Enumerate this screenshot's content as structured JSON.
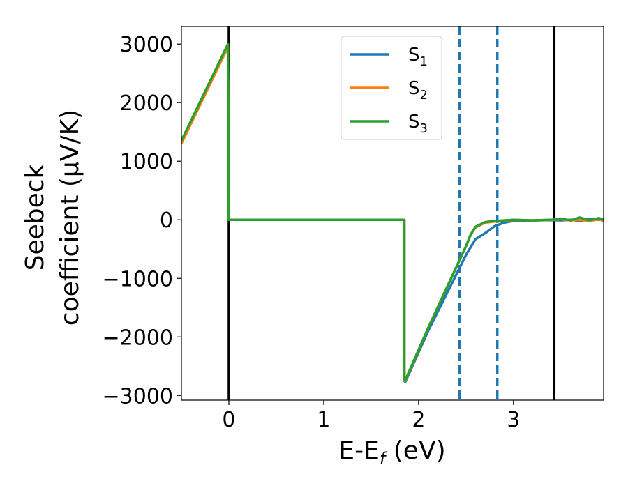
{
  "chart_data": {
    "type": "line",
    "xlabel_main": "E-E",
    "xlabel_sub": "f",
    "xlabel_unit": " (eV)",
    "ylabel_line1": "Seebeck",
    "ylabel_line2": "coefficient  (μV/K)",
    "xlim": [
      -0.5,
      3.95
    ],
    "ylim": [
      -3080,
      3300
    ],
    "x_ticks": [
      0,
      1,
      2,
      3
    ],
    "x_tick_labels": [
      "0",
      "1",
      "2",
      "3"
    ],
    "y_ticks": [
      3000,
      2000,
      1000,
      0,
      -1000,
      -2000,
      -3000
    ],
    "y_tick_labels": [
      "3000",
      "2000",
      "1000",
      "0",
      "−1000",
      "−2000",
      "−3000"
    ],
    "grid": false,
    "legend_position": "top-center",
    "series": [
      {
        "name": "S",
        "name_sub": "1",
        "color": "#1f77b4",
        "x": [
          -0.5,
          -0.01,
          0.0,
          0.01,
          1.85,
          1.85,
          1.86,
          2.1,
          2.3,
          2.5,
          2.6,
          2.7,
          2.8,
          2.9,
          3.0,
          3.2,
          3.4,
          3.5,
          3.6,
          3.7,
          3.8,
          3.9,
          3.95
        ],
        "y": [
          1350,
          2980,
          0,
          0,
          0,
          -2750,
          -2770,
          -1900,
          -1250,
          -600,
          -330,
          -230,
          -110,
          -50,
          -20,
          -10,
          -5,
          -10,
          0,
          -20,
          10,
          0,
          0
        ]
      },
      {
        "name": "S",
        "name_sub": "2",
        "color": "#ff7f0e",
        "x": [
          -0.5,
          -0.01,
          0.0,
          0.01,
          1.85,
          1.85,
          1.86,
          2.1,
          2.3,
          2.5,
          2.55,
          2.6,
          2.7,
          2.8,
          2.9,
          3.0,
          3.2,
          3.4,
          3.5,
          3.6,
          3.7,
          3.8,
          3.9,
          3.95
        ],
        "y": [
          1300,
          2950,
          0,
          0,
          0,
          -2730,
          -2750,
          -1850,
          -1150,
          -450,
          -250,
          -130,
          -50,
          -30,
          -20,
          0,
          -10,
          0,
          10,
          -10,
          0,
          -20,
          10,
          -20
        ]
      },
      {
        "name": "S",
        "name_sub": "3",
        "color": "#2ca02c",
        "x": [
          -0.5,
          -0.01,
          0.0,
          0.01,
          1.85,
          1.85,
          1.86,
          2.1,
          2.3,
          2.5,
          2.55,
          2.6,
          2.7,
          2.8,
          2.9,
          3.0,
          3.2,
          3.4,
          3.5,
          3.6,
          3.7,
          3.8,
          3.9,
          3.95
        ],
        "y": [
          1350,
          3000,
          0,
          0,
          0,
          -2720,
          -2740,
          -1850,
          -1150,
          -450,
          -250,
          -120,
          -40,
          -20,
          -10,
          0,
          -10,
          0,
          20,
          -10,
          40,
          -10,
          30,
          0
        ]
      }
    ],
    "vertical_lines": [
      {
        "x": 0.0,
        "style": "solid",
        "color": "#000000"
      },
      {
        "x": 2.43,
        "style": "dashed",
        "color": "#1f77b4"
      },
      {
        "x": 2.83,
        "style": "dashed",
        "color": "#1f77b4"
      },
      {
        "x": 3.43,
        "style": "solid",
        "color": "#000000"
      }
    ]
  }
}
